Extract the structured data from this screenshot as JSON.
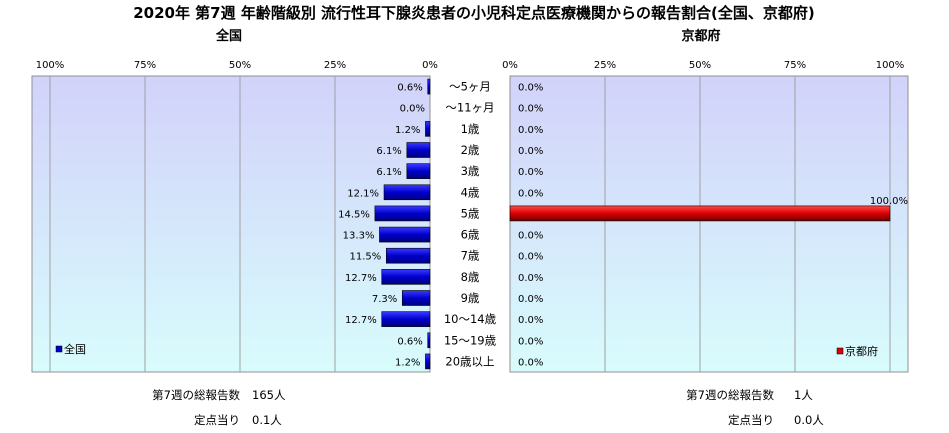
{
  "title": "2020年 第7週 年齢階級別 流行性耳下腺炎患者の小児科定点医療機関からの報告割合(全国、京都府)",
  "chart_data": [
    {
      "type": "bar",
      "orientation": "horizontal",
      "direction": "right-to-left",
      "subtitle": "全国",
      "legend": {
        "label": "全国",
        "position": "bottom-left"
      },
      "color": "#0000cc",
      "xlim": [
        0,
        100
      ],
      "xticks": [
        "100%",
        "75%",
        "50%",
        "25%",
        "0%"
      ],
      "grid": true,
      "values": [
        0.6,
        0.0,
        1.2,
        6.1,
        6.1,
        12.1,
        14.5,
        13.3,
        11.5,
        12.7,
        7.3,
        12.7,
        0.6,
        1.2
      ],
      "labels": [
        "0.6%",
        "0.0%",
        "1.2%",
        "6.1%",
        "6.1%",
        "12.1%",
        "14.5%",
        "13.3%",
        "11.5%",
        "12.7%",
        "7.3%",
        "12.7%",
        "0.6%",
        "1.2%"
      ]
    },
    {
      "type": "bar",
      "orientation": "horizontal",
      "direction": "left-to-right",
      "subtitle": "京都府",
      "legend": {
        "label": "京都府",
        "position": "bottom-right"
      },
      "color": "#dd0000",
      "xlim": [
        0,
        100
      ],
      "xticks": [
        "0%",
        "25%",
        "50%",
        "75%",
        "100%"
      ],
      "grid": true,
      "values": [
        0,
        0,
        0,
        0,
        0,
        0,
        100,
        0,
        0,
        0,
        0,
        0,
        0,
        0
      ],
      "labels": [
        "0.0%",
        "0.0%",
        "0.0%",
        "0.0%",
        "0.0%",
        "0.0%",
        "100.0%",
        "0.0%",
        "0.0%",
        "0.0%",
        "0.0%",
        "0.0%",
        "0.0%",
        "0.0%"
      ]
    }
  ],
  "categories": [
    "～5ヶ月",
    "～11ヶ月",
    "1歳",
    "2歳",
    "3歳",
    "4歳",
    "5歳",
    "6歳",
    "7歳",
    "8歳",
    "9歳",
    "10～14歳",
    "15～19歳",
    "20歳以上"
  ],
  "footer": {
    "national": {
      "total_label": "第7週の総報告数",
      "total_value": "165人",
      "per_label": "定点当り",
      "per_value": "0.1人"
    },
    "kyoto": {
      "total_label": "第7週の総報告数",
      "total_value": "1人",
      "per_label": "定点当り",
      "per_value": "0.0人"
    }
  },
  "colors": {
    "plot_top": "#d4d4fa",
    "plot_bottom": "#d6fbfb",
    "national_bar": "#0000cc",
    "kyoto_bar": "#dd0000"
  }
}
